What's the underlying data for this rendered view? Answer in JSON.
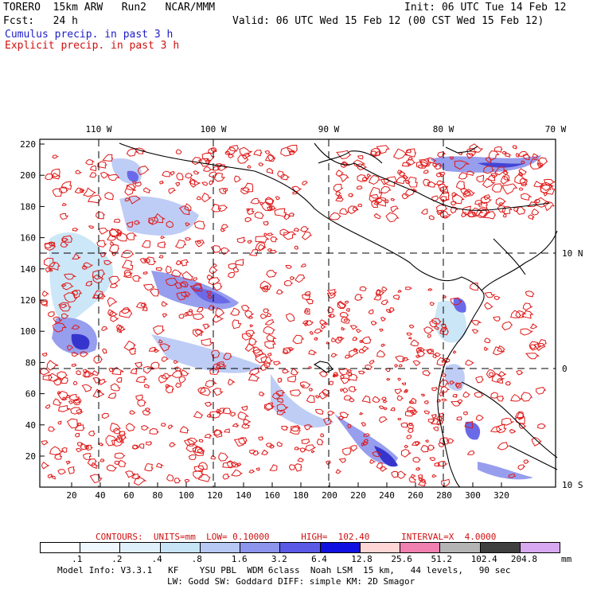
{
  "header": {
    "title": "TORERO  15km ARW   Run2   NCAR/MMM",
    "init": "Init: 06 UTC Tue 14 Feb 12",
    "fcst": "Fcst:   24 h",
    "valid": "Valid: 06 UTC Wed 15 Feb 12 (00 CST Wed 15 Feb 12)",
    "legend_cumulus": "Cumulus precip. in past 3 h",
    "legend_explicit": "Explicit precip. in past 3 h"
  },
  "map": {
    "lon_labels": [
      "110 W",
      "100 W",
      "90 W",
      "80 W",
      "70 W"
    ],
    "lat_labels": [
      "10 N",
      "0",
      "10 S"
    ],
    "y_ticks": [
      "220",
      "200",
      "180",
      "160",
      "140",
      "120",
      "100",
      "80",
      "60",
      "40",
      "20"
    ],
    "x_ticks": [
      "20",
      "40",
      "60",
      "80",
      "100",
      "120",
      "140",
      "160",
      "180",
      "200",
      "220",
      "240",
      "260",
      "280",
      "300",
      "320"
    ],
    "colors": {
      "explicit": "#e01818",
      "coast": "#000000",
      "grid": "#000000"
    }
  },
  "contour_info": "CONTOURS:  UNITS=mm  LOW= 0.10000      HIGH=  102.40      INTERVAL=X  4.0000",
  "colorbar": {
    "labels": [
      ".1",
      ".2",
      ".4",
      ".8",
      "1.6",
      "3.2",
      "6.4",
      "12.8",
      "25.6",
      "51.2",
      "102.4",
      "204.8"
    ],
    "unit": "mm",
    "colors": [
      "#ffffff",
      "#f0f8ff",
      "#dff0fb",
      "#c6e4f6",
      "#b8c8f4",
      "#8c94ec",
      "#5a5ae6",
      "#1010e0",
      "#ffd6d6",
      "#f080b0",
      "#b4b4b4",
      "#404040",
      "#d8a8f0"
    ]
  },
  "footer": {
    "line1": "Model Info: V3.3.1   KF    YSU PBL  WDM 6class  Noah LSM  15 km,   44 levels,   90 sec",
    "line2": "LW: Godd SW: Goddard DIFF: simple KM: 2D Smagor"
  }
}
